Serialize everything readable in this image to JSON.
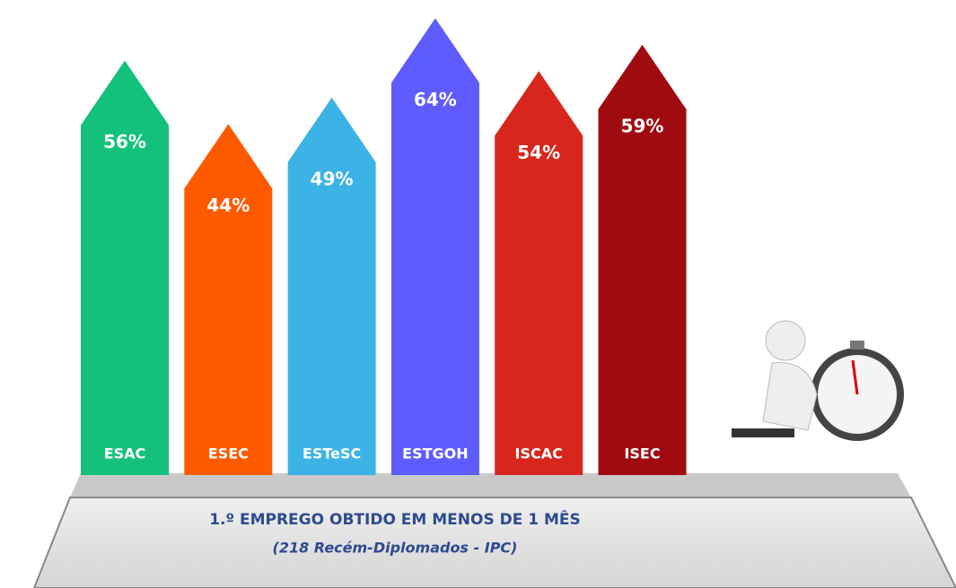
{
  "chart_data": {
    "type": "bar",
    "title": "1.º EMPREGO OBTIDO EM MENOS DE 1 MÊS",
    "subtitle": "(218 Recém-Diplomados - IPC)",
    "categories": [
      "ESAC",
      "ESEC",
      "ESTeSC",
      "ESTGOH",
      "ISCAC",
      "ISEC"
    ],
    "values": [
      56,
      44,
      49,
      64,
      54,
      59
    ],
    "value_labels": [
      "56%",
      "44%",
      "49%",
      "64%",
      "54%",
      "59%"
    ],
    "colors": [
      "#13c17b",
      "#ff5a00",
      "#3cb3e6",
      "#5f5cff",
      "#d9261c",
      "#a00b10"
    ]
  }
}
